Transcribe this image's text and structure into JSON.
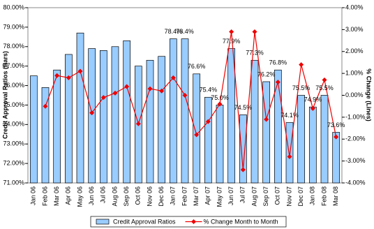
{
  "chart_data": {
    "type": "bar",
    "y_label": "Credit Approval Ratios (Bars)",
    "y2_label": "% Change (Lines)",
    "categories": [
      "Jan 06",
      "Feb 06",
      "Mar 06",
      "Apr 06",
      "May 06",
      "Jun 06",
      "Jul 06",
      "Aug 06",
      "Sep 06",
      "Oct 06",
      "Nov 06",
      "Dec 06",
      "Jan 07",
      "Feb 07",
      "Mar 07",
      "Apr 07",
      "May 07",
      "Jun 07",
      "Jul 07",
      "Aug 07",
      "Sep 07",
      "Oct 07",
      "Nov 07",
      "Dec 07",
      "Jan 08",
      "Feb 08",
      "Mar 08"
    ],
    "series": [
      {
        "name": "Credit Approval Ratios",
        "type": "bar",
        "color": "#99ccff",
        "values": [
          76.5,
          75.9,
          76.8,
          77.6,
          78.7,
          77.9,
          77.8,
          78.0,
          78.3,
          77.0,
          77.3,
          77.5,
          78.4,
          78.4,
          76.6,
          75.4,
          75.0,
          77.9,
          74.5,
          77.3,
          76.2,
          76.8,
          74.1,
          75.5,
          74.9,
          75.5,
          73.6
        ],
        "value_labels": [
          null,
          null,
          null,
          null,
          null,
          null,
          null,
          null,
          null,
          null,
          null,
          null,
          "78.4%",
          "78.4%",
          "76.6%",
          "75.4%",
          "75.0%",
          "77.9%",
          "74.5%",
          "77.3%",
          "76.2%",
          "76.8%",
          "74.1%",
          "75.5%",
          "74.9%",
          "75.5%",
          "73.6%"
        ]
      },
      {
        "name": "% Change Month to Month",
        "type": "line",
        "axis": "y2",
        "color": "#ee0000",
        "values": [
          null,
          -0.5,
          0.9,
          0.8,
          1.1,
          -0.8,
          -0.1,
          0.1,
          0.4,
          -1.3,
          0.3,
          0.2,
          0.8,
          0.0,
          -1.8,
          -1.2,
          -0.4,
          2.9,
          -3.4,
          2.9,
          -1.1,
          0.6,
          -2.8,
          1.4,
          -0.6,
          0.7,
          -1.9
        ]
      }
    ],
    "ylim": [
      71,
      80
    ],
    "yticks": [
      {
        "value": 71,
        "label": "71.00%"
      },
      {
        "value": 72,
        "label": "72.00%"
      },
      {
        "value": 73,
        "label": "73.00%"
      },
      {
        "value": 74,
        "label": "74.00%"
      },
      {
        "value": 75,
        "label": "75.00%"
      },
      {
        "value": 76,
        "label": "76.00%"
      },
      {
        "value": 77,
        "label": "77.00%"
      },
      {
        "value": 78,
        "label": "78.00%"
      },
      {
        "value": 79,
        "label": "79.00%"
      },
      {
        "value": 80,
        "label": "80.00%"
      }
    ],
    "y2lim": [
      -4,
      4
    ],
    "y2ticks": [
      {
        "value": -4,
        "label": "-4.00%"
      },
      {
        "value": -3,
        "label": "-3.00%"
      },
      {
        "value": -2,
        "label": "-2.00%"
      },
      {
        "value": -1,
        "label": "-1.00%"
      },
      {
        "value": 0,
        "label": "0.00%"
      },
      {
        "value": 1,
        "label": "1.00%"
      },
      {
        "value": 2,
        "label": "2.00%"
      },
      {
        "value": 3,
        "label": "3.00%"
      },
      {
        "value": 4,
        "label": "4.00%"
      }
    ],
    "legend": "bottom"
  }
}
